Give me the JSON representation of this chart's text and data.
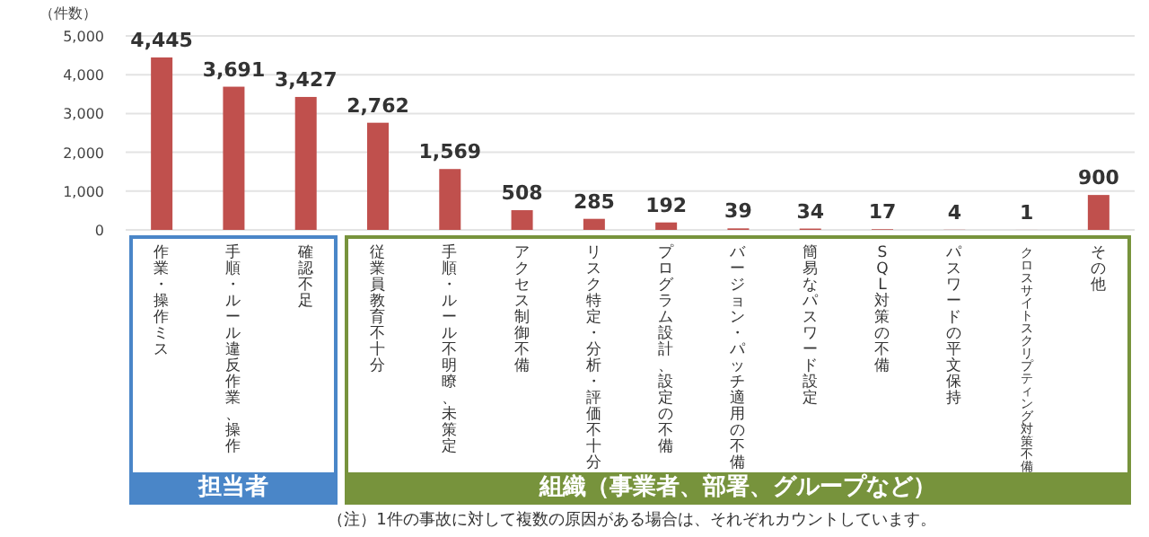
{
  "chart_data": {
    "type": "bar",
    "ylabel": "（件数）",
    "categories": [
      "作業・操作ミス",
      "手順・ルール違反作業、操作",
      "確認不足",
      "従業員教育不十分",
      "手順・ルール不明瞭、未策定",
      "アクセス制御不備",
      "リスク特定・分析・評価不十分",
      "プログラム設計、設定の不備",
      "バージョン・パッチ適用の不備",
      "簡易なパスワード設定",
      "SQL対策の不備",
      "パスワードの平文保持",
      "クロスサイトスクリプティング対策不備",
      "その他"
    ],
    "values": [
      4445,
      3691,
      3427,
      2762,
      1569,
      508,
      285,
      192,
      39,
      34,
      17,
      4,
      1,
      900
    ],
    "value_labels": [
      "4,445",
      "3,691",
      "3,427",
      "2,762",
      "1,569",
      "508",
      "285",
      "192",
      "39",
      "34",
      "17",
      "4",
      "1",
      "900"
    ],
    "color": "#c0504d",
    "ylim": [
      0,
      5000
    ],
    "yticks": [
      0,
      {
        "value": 1000,
        "label": "1,000"
      },
      {
        "value": 2000,
        "label": "2,000"
      },
      {
        "value": 3000,
        "label": "3,000"
      },
      {
        "value": 4000,
        "label": "4,000"
      },
      {
        "value": 5000,
        "label": "5,000"
      }
    ],
    "grid": "y",
    "annotations": [
      "担当者",
      "組織（事業者、部署、グループなど）",
      "（注）1件の事故に対して複数の原因がある場合は、それぞれカウントしています。"
    ]
  }
}
